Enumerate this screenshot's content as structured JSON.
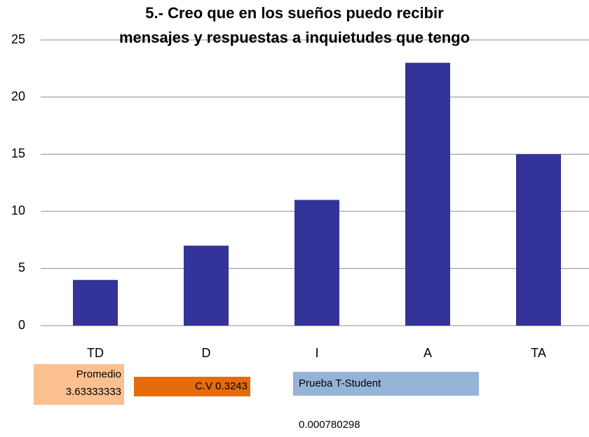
{
  "chart_data": {
    "type": "bar",
    "title": [
      "5.- Creo que en los sueños puedo recibir",
      "mensajes y respuestas a inquietudes que tengo"
    ],
    "categories": [
      "TD",
      "D",
      "I",
      "A",
      "TA"
    ],
    "values": [
      4,
      7,
      11,
      23,
      15
    ],
    "color": "#333399",
    "ylim": [
      0,
      25
    ],
    "yticks": [
      0,
      5,
      10,
      15,
      20,
      25
    ],
    "grid": true,
    "annotations": [
      {
        "text": "Promedio 3.63333333",
        "color": "#fac090"
      },
      {
        "text": "C.V 0.3243",
        "color": "#e46c0a"
      },
      {
        "text": "Prueba T-Student",
        "color": "#95b3d7"
      },
      {
        "text": "0.000780298"
      }
    ]
  }
}
